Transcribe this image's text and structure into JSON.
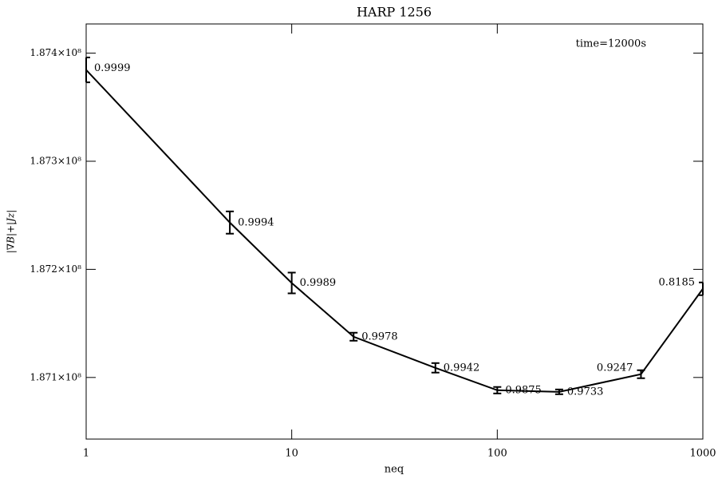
{
  "chart_data": {
    "type": "line",
    "title": "HARP 1256",
    "annotation": "time=12000s",
    "xlabel": "neq",
    "ylabel": "|∇B|+|Jz|",
    "color": "#000000",
    "log_x": true,
    "x": [
      1,
      5,
      10,
      20,
      50,
      100,
      200,
      500,
      1000
    ],
    "values": [
      187384500,
      187243300,
      187187400,
      187137700,
      187108900,
      187088200,
      187086700,
      187103000,
      187182000
    ],
    "errors": [
      11500,
      10300,
      9600,
      3700,
      4400,
      3000,
      2200,
      3700,
      5900
    ],
    "point_labels": [
      "0.9999",
      "0.9994",
      "0.9989",
      "0.9978",
      "0.9942",
      "0.9875",
      "0.9733",
      "0.9247",
      "0.8185"
    ],
    "xlim": [
      1,
      1000
    ],
    "xticks": [
      1,
      10,
      100,
      1000
    ],
    "ylim": [
      187043000,
      187427000
    ],
    "yticks": [
      {
        "value": 187100000,
        "label": "1.871×10⁸"
      },
      {
        "value": 187200000,
        "label": "1.872×10⁸"
      },
      {
        "value": 187300000,
        "label": "1.873×10⁸"
      },
      {
        "value": 187400000,
        "label": "1.874×10⁸"
      }
    ]
  }
}
